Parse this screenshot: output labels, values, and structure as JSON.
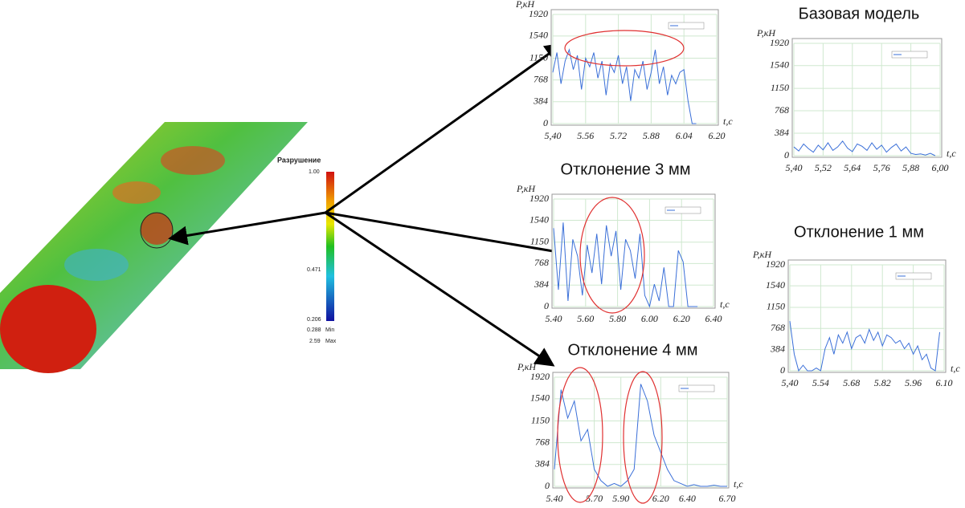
{
  "chart_data": [
    {
      "type": "line",
      "y_label": "P,кН",
      "x_label": "t,c",
      "color": "#3a6fd8",
      "grid": true,
      "x": [
        5.4,
        5.42,
        5.44,
        5.46,
        5.48,
        5.5,
        5.52,
        5.54,
        5.56,
        5.58,
        5.6,
        5.62,
        5.64,
        5.66,
        5.68,
        5.7,
        5.72,
        5.74,
        5.76,
        5.78,
        5.8,
        5.82,
        5.84,
        5.86,
        5.88,
        5.9,
        5.92,
        5.94,
        5.96,
        5.98,
        6.0,
        6.02,
        6.04,
        6.06,
        6.08,
        6.1
      ],
      "values": [
        900,
        1250,
        700,
        1100,
        1300,
        950,
        1200,
        600,
        1150,
        1000,
        1250,
        800,
        1100,
        500,
        1050,
        900,
        1200,
        700,
        1000,
        400,
        950,
        800,
        1100,
        600,
        900,
        1300,
        700,
        1000,
        500,
        850,
        700,
        900,
        950,
        400,
        0,
        0
      ],
      "xlim": [
        5.4,
        6.2
      ],
      "ylim": [
        0,
        1920
      ],
      "xticks": [
        {
          "value": 5.4,
          "label": "5,40"
        },
        {
          "value": 5.56,
          "label": "5.56"
        },
        {
          "value": 5.72,
          "label": "5.72"
        },
        {
          "value": 5.88,
          "label": "5.88"
        },
        {
          "value": 6.04,
          "label": "6.04"
        },
        {
          "value": 6.2,
          "label": "6.20"
        }
      ],
      "yticks": [
        0,
        384,
        768,
        1150,
        1540,
        1920
      ]
    },
    {
      "type": "line",
      "title": "Базовая модель",
      "y_label": "P,кН",
      "x_label": "t,c",
      "color": "#3a6fd8",
      "grid": true,
      "x": [
        5.4,
        5.42,
        5.44,
        5.46,
        5.48,
        5.5,
        5.52,
        5.54,
        5.56,
        5.58,
        5.6,
        5.62,
        5.64,
        5.66,
        5.68,
        5.7,
        5.72,
        5.74,
        5.76,
        5.78,
        5.8,
        5.82,
        5.84,
        5.86,
        5.88,
        5.9,
        5.92,
        5.94,
        5.96,
        5.98
      ],
      "values": [
        150,
        80,
        200,
        120,
        60,
        180,
        100,
        220,
        90,
        150,
        250,
        130,
        70,
        200,
        160,
        90,
        220,
        110,
        180,
        60,
        140,
        200,
        80,
        150,
        40,
        20,
        30,
        10,
        40,
        0
      ],
      "xlim": [
        5.4,
        6.0
      ],
      "ylim": [
        0,
        1920
      ],
      "xticks": [
        {
          "value": 5.4,
          "label": "5,40"
        },
        {
          "value": 5.52,
          "label": "5,52"
        },
        {
          "value": 5.64,
          "label": "5,64"
        },
        {
          "value": 5.76,
          "label": "5,76"
        },
        {
          "value": 5.88,
          "label": "5,88"
        },
        {
          "value": 6.0,
          "label": "6,00"
        }
      ],
      "yticks": [
        0,
        384,
        768,
        1150,
        1540,
        1920
      ]
    },
    {
      "type": "line",
      "title": "Отклонение 3 мм",
      "y_label": "P,кН",
      "x_label": "t,c",
      "color": "#3a6fd8",
      "grid": true,
      "x": [
        5.4,
        5.43,
        5.46,
        5.49,
        5.52,
        5.55,
        5.58,
        5.61,
        5.64,
        5.67,
        5.7,
        5.73,
        5.76,
        5.79,
        5.82,
        5.85,
        5.88,
        5.91,
        5.94,
        5.97,
        6.0,
        6.03,
        6.06,
        6.09,
        6.12,
        6.15,
        6.18,
        6.21,
        6.24,
        6.27,
        6.3
      ],
      "values": [
        1400,
        300,
        1500,
        100,
        1200,
        900,
        200,
        1100,
        600,
        1300,
        400,
        1450,
        900,
        1350,
        300,
        1200,
        1000,
        500,
        1300,
        200,
        0,
        400,
        100,
        700,
        0,
        0,
        1000,
        800,
        0,
        0,
        0
      ],
      "xlim": [
        5.4,
        6.4
      ],
      "ylim": [
        0,
        1920
      ],
      "xticks": [
        {
          "value": 5.4,
          "label": "5.40"
        },
        {
          "value": 5.6,
          "label": "5.60"
        },
        {
          "value": 5.8,
          "label": "5.80"
        },
        {
          "value": 6.0,
          "label": "6.00"
        },
        {
          "value": 6.2,
          "label": "6.20"
        },
        {
          "value": 6.4,
          "label": "6.40"
        }
      ],
      "yticks": [
        0,
        384,
        768,
        1150,
        1540,
        1920
      ]
    },
    {
      "type": "line",
      "title": "Отклонение 1 мм",
      "y_label": "P,кН",
      "x_label": "t,c",
      "color": "#3a6fd8",
      "grid": true,
      "x": [
        5.4,
        5.42,
        5.44,
        5.46,
        5.48,
        5.5,
        5.52,
        5.54,
        5.56,
        5.58,
        5.6,
        5.62,
        5.64,
        5.66,
        5.68,
        5.7,
        5.72,
        5.74,
        5.76,
        5.78,
        5.8,
        5.82,
        5.84,
        5.86,
        5.88,
        5.9,
        5.92,
        5.94,
        5.96,
        5.98,
        6.0,
        6.02,
        6.04,
        6.06,
        6.08
      ],
      "values": [
        900,
        300,
        0,
        100,
        0,
        0,
        50,
        0,
        400,
        600,
        300,
        650,
        500,
        700,
        400,
        600,
        650,
        500,
        750,
        550,
        700,
        450,
        650,
        600,
        500,
        550,
        400,
        500,
        300,
        450,
        200,
        300,
        50,
        0,
        700
      ],
      "xlim": [
        5.4,
        6.1
      ],
      "ylim": [
        0,
        1920
      ],
      "xticks": [
        {
          "value": 5.4,
          "label": "5,40"
        },
        {
          "value": 5.54,
          "label": "5.54"
        },
        {
          "value": 5.68,
          "label": "5.68"
        },
        {
          "value": 5.82,
          "label": "5.82"
        },
        {
          "value": 5.96,
          "label": "5.96"
        },
        {
          "value": 6.1,
          "label": "6.10"
        }
      ],
      "yticks": [
        0,
        384,
        768,
        1150,
        1540,
        1920
      ]
    },
    {
      "type": "line",
      "title": "Отклонение 4 мм",
      "y_label": "P,кН",
      "x_label": "t,c",
      "color": "#3a6fd8",
      "grid": true,
      "x": [
        5.4,
        5.45,
        5.5,
        5.55,
        5.6,
        5.65,
        5.7,
        5.75,
        5.8,
        5.85,
        5.9,
        5.95,
        6.0,
        6.05,
        6.1,
        6.15,
        6.2,
        6.25,
        6.3,
        6.35,
        6.4,
        6.45,
        6.5,
        6.55,
        6.6,
        6.65,
        6.7
      ],
      "values": [
        300,
        1700,
        1200,
        1500,
        800,
        1000,
        300,
        100,
        0,
        50,
        0,
        100,
        300,
        1800,
        1500,
        900,
        600,
        300,
        100,
        50,
        0,
        30,
        0,
        0,
        20,
        0,
        0
      ],
      "xlim": [
        5.4,
        6.7
      ],
      "ylim": [
        0,
        1920
      ],
      "xticks": [
        {
          "value": 5.4,
          "label": "5.40"
        },
        {
          "value": 5.7,
          "label": "5.70"
        },
        {
          "value": 5.9,
          "label": "5.90"
        },
        {
          "value": 6.2,
          "label": "6.20"
        },
        {
          "value": 6.4,
          "label": "6.40"
        },
        {
          "value": 6.7,
          "label": "6.70"
        }
      ],
      "yticks": [
        0,
        384,
        768,
        1150,
        1540,
        1920
      ]
    }
  ],
  "figure": {
    "colorbar_title": "Разрушение",
    "colorbar_labels": [
      "1.00",
      "0.471",
      "0.206"
    ],
    "min_value": "0.288",
    "min_label": "Min",
    "max_value": "2.59",
    "max_label": "Max"
  }
}
